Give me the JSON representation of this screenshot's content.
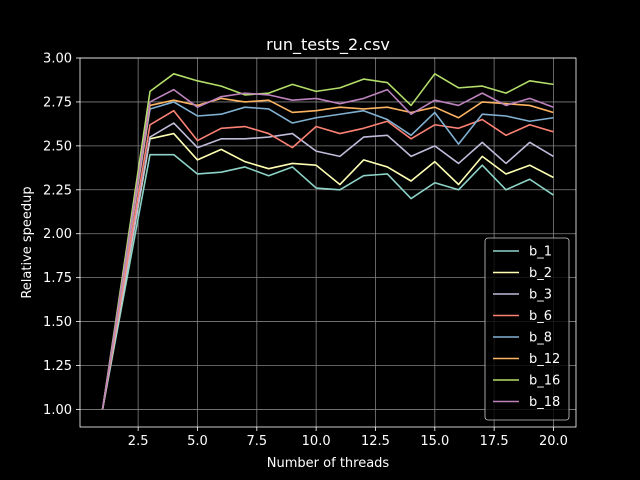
{
  "chart_data": {
    "type": "line",
    "title": "run_tests_2.csv",
    "xlabel": "Number of threads",
    "ylabel": "Relative speedup",
    "xlim": [
      0.05,
      20.95
    ],
    "ylim": [
      0.9,
      3.0
    ],
    "xticks": [
      "2.5",
      "5.0",
      "7.5",
      "10.0",
      "12.5",
      "15.0",
      "17.5",
      "20.0"
    ],
    "xtick_values": [
      2.5,
      5.0,
      7.5,
      10.0,
      12.5,
      15.0,
      17.5,
      20.0
    ],
    "yticks": [
      "1.00",
      "1.25",
      "1.50",
      "1.75",
      "2.00",
      "2.25",
      "2.50",
      "2.75",
      "3.00"
    ],
    "ytick_values": [
      1.0,
      1.25,
      1.5,
      1.75,
      2.0,
      2.25,
      2.5,
      2.75,
      3.0
    ],
    "grid": true,
    "legend_position": "lower-right",
    "x": [
      1,
      3,
      4,
      5,
      6,
      7,
      8,
      9,
      10,
      11,
      12,
      13,
      14,
      15,
      16,
      17,
      18,
      19,
      20
    ],
    "series": [
      {
        "name": "b_1",
        "color": "#8dd3c7",
        "values": [
          1.0,
          2.45,
          2.45,
          2.34,
          2.35,
          2.38,
          2.33,
          2.38,
          2.26,
          2.25,
          2.33,
          2.34,
          2.2,
          2.29,
          2.25,
          2.39,
          2.25,
          2.31,
          2.22
        ]
      },
      {
        "name": "b_2",
        "color": "#feffb3",
        "values": [
          1.0,
          2.54,
          2.57,
          2.42,
          2.48,
          2.41,
          2.37,
          2.4,
          2.39,
          2.28,
          2.42,
          2.38,
          2.3,
          2.41,
          2.28,
          2.44,
          2.34,
          2.39,
          2.32
        ]
      },
      {
        "name": "b_3",
        "color": "#bfbbd9",
        "values": [
          1.0,
          2.55,
          2.63,
          2.49,
          2.54,
          2.54,
          2.55,
          2.57,
          2.47,
          2.44,
          2.55,
          2.56,
          2.44,
          2.5,
          2.4,
          2.52,
          2.4,
          2.52,
          2.44
        ]
      },
      {
        "name": "b_6",
        "color": "#fa8174",
        "values": [
          1.0,
          2.62,
          2.7,
          2.53,
          2.6,
          2.61,
          2.57,
          2.49,
          2.61,
          2.57,
          2.6,
          2.64,
          2.54,
          2.62,
          2.6,
          2.65,
          2.56,
          2.62,
          2.58
        ]
      },
      {
        "name": "b_8",
        "color": "#81b1d2",
        "values": [
          1.0,
          2.71,
          2.75,
          2.67,
          2.68,
          2.72,
          2.71,
          2.63,
          2.66,
          2.68,
          2.7,
          2.65,
          2.56,
          2.69,
          2.51,
          2.68,
          2.67,
          2.64,
          2.66
        ]
      },
      {
        "name": "b_12",
        "color": "#fdb462",
        "values": [
          1.0,
          2.73,
          2.76,
          2.73,
          2.77,
          2.75,
          2.76,
          2.69,
          2.7,
          2.72,
          2.71,
          2.72,
          2.69,
          2.72,
          2.66,
          2.75,
          2.74,
          2.73,
          2.69
        ]
      },
      {
        "name": "b_16",
        "color": "#b3de69",
        "values": [
          1.0,
          2.81,
          2.91,
          2.87,
          2.84,
          2.79,
          2.8,
          2.85,
          2.81,
          2.83,
          2.88,
          2.86,
          2.73,
          2.91,
          2.83,
          2.84,
          2.8,
          2.87,
          2.85
        ]
      },
      {
        "name": "b_18",
        "color": "#bc82bd",
        "values": [
          1.0,
          2.75,
          2.82,
          2.72,
          2.78,
          2.8,
          2.79,
          2.76,
          2.77,
          2.74,
          2.77,
          2.82,
          2.68,
          2.76,
          2.73,
          2.8,
          2.73,
          2.77,
          2.72
        ]
      }
    ]
  }
}
